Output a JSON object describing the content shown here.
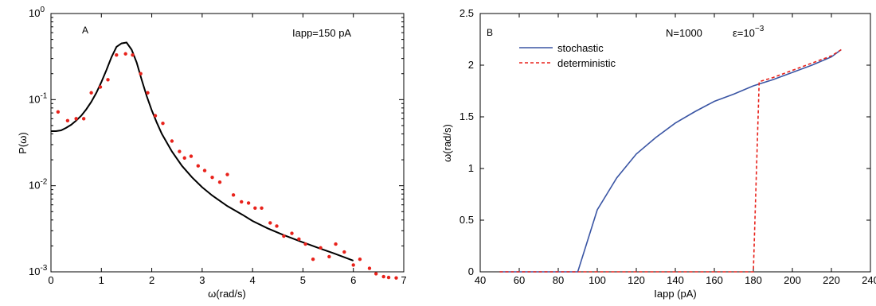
{
  "chart_data": [
    {
      "type": "scatter",
      "panel_label": "A",
      "annotation": "Iapp=150 pA",
      "xlabel": "ω(rad/s)",
      "ylabel": "P(ω)",
      "xlim": [
        0,
        7
      ],
      "ylim": [
        0.001,
        1
      ],
      "yscale": "log",
      "x_ticks": [
        "0",
        "1",
        "2",
        "3",
        "4",
        "5",
        "6",
        "7"
      ],
      "y_ticks": [
        {
          "base": "10",
          "exp": "0"
        },
        {
          "base": "10",
          "exp": "-1"
        },
        {
          "base": "10",
          "exp": "-2"
        },
        {
          "base": "10",
          "exp": "-3"
        }
      ],
      "series": [
        {
          "style": "line",
          "color": "#000000",
          "x": [
            0.0,
            0.1,
            0.2,
            0.3,
            0.4,
            0.5,
            0.6,
            0.7,
            0.8,
            0.9,
            1.0,
            1.1,
            1.2,
            1.3,
            1.4,
            1.5,
            1.6,
            1.7,
            1.8,
            1.9,
            2.0,
            2.1,
            2.2,
            2.4,
            2.6,
            2.8,
            3.0,
            3.2,
            3.5,
            3.8,
            4.0,
            4.3,
            4.6,
            5.0,
            5.3,
            5.6,
            6.0
          ],
          "y": [
            0.043,
            0.043,
            0.044,
            0.047,
            0.051,
            0.057,
            0.065,
            0.077,
            0.094,
            0.12,
            0.16,
            0.22,
            0.31,
            0.41,
            0.45,
            0.46,
            0.38,
            0.27,
            0.17,
            0.11,
            0.075,
            0.054,
            0.04,
            0.025,
            0.017,
            0.0125,
            0.0096,
            0.0077,
            0.0058,
            0.0046,
            0.0039,
            0.0032,
            0.0027,
            0.0022,
            0.0019,
            0.00165,
            0.00135
          ]
        },
        {
          "style": "points",
          "color": "#e8221b",
          "x": [
            0.14,
            0.33,
            0.5,
            0.65,
            0.8,
            0.98,
            1.13,
            1.3,
            1.48,
            1.62,
            1.78,
            1.92,
            2.07,
            2.22,
            2.4,
            2.55,
            2.65,
            2.78,
            2.92,
            3.05,
            3.2,
            3.35,
            3.5,
            3.62,
            3.78,
            3.92,
            4.05,
            4.18,
            4.35,
            4.48,
            4.62,
            4.78,
            4.92,
            5.05,
            5.2,
            5.35,
            5.52,
            5.65,
            5.82,
            6.0,
            6.13,
            6.32,
            6.45,
            6.6,
            6.7,
            6.85
          ],
          "y": [
            0.072,
            0.057,
            0.06,
            0.06,
            0.12,
            0.14,
            0.17,
            0.33,
            0.34,
            0.33,
            0.2,
            0.12,
            0.065,
            0.053,
            0.033,
            0.025,
            0.021,
            0.022,
            0.017,
            0.015,
            0.0125,
            0.011,
            0.0135,
            0.0078,
            0.0065,
            0.0063,
            0.0055,
            0.0055,
            0.0037,
            0.0034,
            0.0026,
            0.0028,
            0.0024,
            0.0021,
            0.0014,
            0.0019,
            0.0015,
            0.0021,
            0.0017,
            0.0012,
            0.0014,
            0.0011,
            0.00095,
            0.00088,
            0.00086,
            0.00085
          ]
        }
      ]
    },
    {
      "type": "line",
      "panel_label": "B",
      "annotation": "N=1000",
      "annotation2_base": "ε=10",
      "annotation2_exp": "−3",
      "xlabel": "Iapp (pA)",
      "ylabel": "ω(rad/s)",
      "xlim": [
        40,
        240
      ],
      "ylim": [
        0,
        2.5
      ],
      "x_ticks": [
        "40",
        "60",
        "80",
        "100",
        "120",
        "140",
        "160",
        "180",
        "200",
        "220",
        "240"
      ],
      "y_ticks": [
        "0",
        "0.5",
        "1",
        "1.5",
        "2",
        "2.5"
      ],
      "series": [
        {
          "name": "stochastic",
          "style": "solid",
          "color": "#3a55a4",
          "x": [
            50,
            60,
            70,
            80,
            90,
            100,
            110,
            120,
            130,
            140,
            150,
            160,
            170,
            180,
            190,
            200,
            210,
            220,
            225
          ],
          "y": [
            0,
            0,
            0,
            0,
            0,
            0.6,
            0.91,
            1.14,
            1.3,
            1.44,
            1.55,
            1.65,
            1.72,
            1.8,
            1.86,
            1.93,
            2.0,
            2.08,
            2.15
          ]
        },
        {
          "name": "deterministic",
          "style": "dashed",
          "color": "#e8221b",
          "x": [
            50,
            60,
            70,
            80,
            90,
            100,
            110,
            120,
            130,
            140,
            150,
            160,
            170,
            180,
            183,
            190,
            200,
            210,
            220,
            225
          ],
          "y": [
            0,
            0,
            0,
            0,
            0,
            0,
            0,
            0,
            0,
            0,
            0,
            0,
            0,
            0,
            1.84,
            1.88,
            1.95,
            2.02,
            2.09,
            2.15
          ]
        }
      ]
    }
  ]
}
